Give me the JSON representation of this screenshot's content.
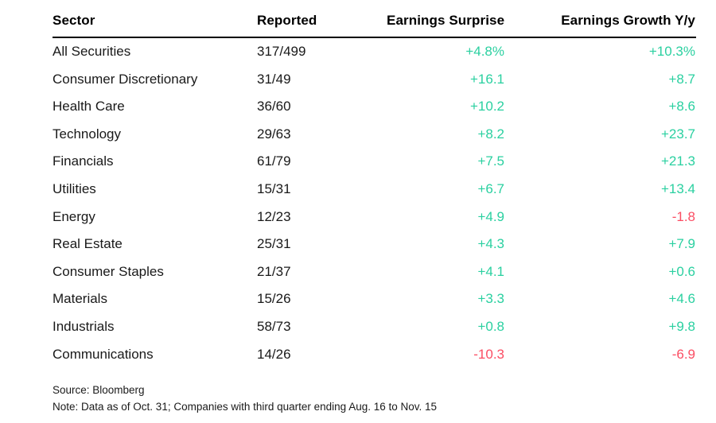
{
  "colors": {
    "positive": "#2ad0a0",
    "negative": "#fb4d63",
    "text": "#191919",
    "rule": "#000000",
    "background": "#ffffff"
  },
  "chart_data": {
    "type": "table",
    "columns": [
      "Sector",
      "Reported",
      "Earnings Surprise",
      "Earnings Growth Y/y"
    ],
    "rows": [
      [
        "All Securities",
        "317/499",
        "+4.8%",
        "+10.3%"
      ],
      [
        "Consumer Discretionary",
        "31/49",
        "+16.1",
        "+8.7"
      ],
      [
        "Health Care",
        "36/60",
        "+10.2",
        "+8.6"
      ],
      [
        "Technology",
        "29/63",
        "+8.2",
        "+23.7"
      ],
      [
        "Financials",
        "61/79",
        "+7.5",
        "+21.3"
      ],
      [
        "Utilities",
        "15/31",
        "+6.7",
        "+13.4"
      ],
      [
        "Energy",
        "12/23",
        "+4.9",
        "-1.8"
      ],
      [
        "Real Estate",
        "25/31",
        "+4.3",
        "+7.9"
      ],
      [
        "Consumer Staples",
        "21/37",
        "+4.1",
        "+0.6"
      ],
      [
        "Materials",
        "15/26",
        "+3.3",
        "+4.6"
      ],
      [
        "Industrials",
        "58/73",
        "+0.8",
        "+9.8"
      ],
      [
        "Communications",
        "14/26",
        "-10.3",
        "-6.9"
      ]
    ],
    "value_semantics": {
      "positive_color": "#2ad0a0",
      "negative_color": "#fb4d63"
    },
    "source": "Source: Bloomberg",
    "note": "Note: Data as of Oct. 31; Companies with third quarter ending Aug. 16 to Nov. 15"
  }
}
